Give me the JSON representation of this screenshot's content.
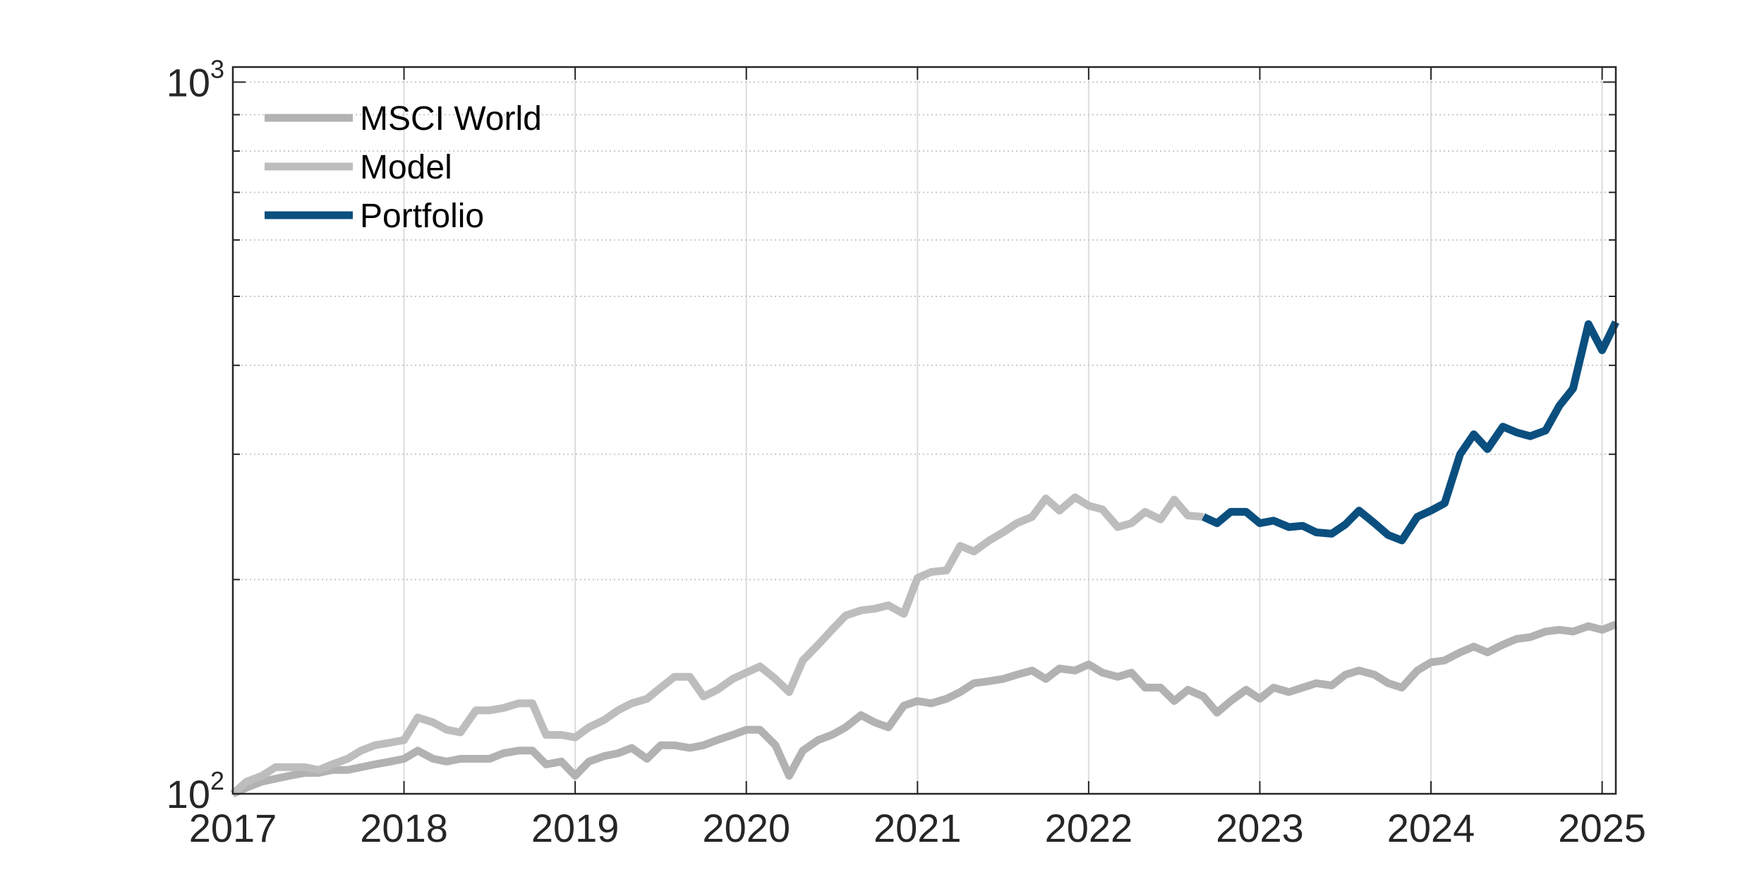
{
  "chart_data": {
    "type": "line",
    "title": "",
    "xlabel": "",
    "ylabel": "",
    "xlim": [
      2017.0,
      2025.08
    ],
    "ylim": [
      100,
      1050
    ],
    "yscale": "log",
    "grid": true,
    "legend_position": "top-left",
    "x_ticks": [
      "2017",
      "2018",
      "2019",
      "2020",
      "2021",
      "2022",
      "2023",
      "2024",
      "2025"
    ],
    "y_ticks": [
      {
        "base": "10",
        "exp": "2"
      },
      {
        "base": "10",
        "exp": "3"
      }
    ],
    "colors": {
      "msci_world": "#b2b2b2",
      "model": "#bdbdbd",
      "portfolio": "#0b4f7f"
    },
    "series": [
      {
        "name": "MSCI World",
        "key": "msci_world",
        "x": [
          2017.0,
          2017.08,
          2017.17,
          2017.25,
          2017.33,
          2017.42,
          2017.5,
          2017.58,
          2017.67,
          2017.75,
          2017.83,
          2017.92,
          2018.0,
          2018.08,
          2018.17,
          2018.25,
          2018.33,
          2018.42,
          2018.5,
          2018.58,
          2018.67,
          2018.75,
          2018.83,
          2018.92,
          2019.0,
          2019.08,
          2019.17,
          2019.25,
          2019.33,
          2019.42,
          2019.5,
          2019.58,
          2019.67,
          2019.75,
          2019.83,
          2019.92,
          2020.0,
          2020.08,
          2020.17,
          2020.25,
          2020.33,
          2020.42,
          2020.5,
          2020.58,
          2020.67,
          2020.75,
          2020.83,
          2020.92,
          2021.0,
          2021.08,
          2021.17,
          2021.25,
          2021.33,
          2021.42,
          2021.5,
          2021.58,
          2021.67,
          2021.75,
          2021.83,
          2021.92,
          2022.0,
          2022.08,
          2022.17,
          2022.25,
          2022.33,
          2022.42,
          2022.5,
          2022.58,
          2022.67,
          2022.75,
          2022.83,
          2022.92,
          2023.0,
          2023.08,
          2023.17,
          2023.25,
          2023.33,
          2023.42,
          2023.5,
          2023.58,
          2023.67,
          2023.75,
          2023.83,
          2023.92,
          2024.0,
          2024.08,
          2024.17,
          2024.25,
          2024.33,
          2024.42,
          2024.5,
          2024.58,
          2024.67,
          2024.75,
          2024.83,
          2024.92,
          2025.0,
          2025.08
        ],
        "values": [
          100,
          102,
          104,
          105,
          106,
          107,
          107,
          108,
          108,
          109,
          110,
          111,
          112,
          115,
          112,
          111,
          112,
          112,
          112,
          114,
          115,
          115,
          110,
          111,
          106,
          111,
          113,
          114,
          116,
          112,
          117,
          117,
          116,
          117,
          119,
          121,
          123,
          123,
          117,
          106,
          115,
          119,
          121,
          124,
          129,
          126,
          124,
          133,
          135,
          134,
          136,
          139,
          143,
          144,
          145,
          147,
          149,
          145,
          150,
          149,
          152,
          148,
          146,
          148,
          141,
          141,
          135,
          140,
          137,
          130,
          135,
          140,
          136,
          141,
          139,
          141,
          143,
          142,
          147,
          149,
          147,
          143,
          141,
          149,
          153,
          154,
          158,
          161,
          158,
          162,
          165,
          166,
          169,
          170,
          169,
          172,
          170,
          173
        ]
      },
      {
        "name": "Model",
        "key": "model",
        "x": [
          2017.0,
          2017.08,
          2017.17,
          2017.25,
          2017.33,
          2017.42,
          2017.5,
          2017.58,
          2017.67,
          2017.75,
          2017.83,
          2017.92,
          2018.0,
          2018.08,
          2018.17,
          2018.25,
          2018.33,
          2018.42,
          2018.5,
          2018.58,
          2018.67,
          2018.75,
          2018.83,
          2018.92,
          2019.0,
          2019.08,
          2019.17,
          2019.25,
          2019.33,
          2019.42,
          2019.5,
          2019.58,
          2019.67,
          2019.75,
          2019.83,
          2019.92,
          2020.0,
          2020.08,
          2020.17,
          2020.25,
          2020.33,
          2020.42,
          2020.5,
          2020.58,
          2020.67,
          2020.75,
          2020.83,
          2020.92,
          2021.0,
          2021.08,
          2021.17,
          2021.25,
          2021.33,
          2021.42,
          2021.5,
          2021.58,
          2021.67,
          2021.75,
          2021.83,
          2021.92,
          2022.0,
          2022.08,
          2022.17,
          2022.25,
          2022.33,
          2022.42,
          2022.5,
          2022.58,
          2022.67
        ],
        "values": [
          100,
          104,
          106,
          109,
          109,
          109,
          108,
          110,
          112,
          115,
          117,
          118,
          119,
          128,
          126,
          123,
          122,
          131,
          131,
          132,
          134,
          134,
          121,
          121,
          120,
          124,
          127,
          131,
          134,
          136,
          141,
          146,
          146,
          137,
          140,
          145,
          148,
          151,
          145,
          139,
          154,
          162,
          170,
          178,
          181,
          182,
          184,
          179,
          201,
          205,
          206,
          223,
          219,
          227,
          233,
          240,
          245,
          260,
          250,
          261,
          254,
          251,
          237,
          240,
          249,
          243,
          259,
          246,
          245
        ]
      },
      {
        "name": "Portfolio",
        "key": "portfolio",
        "x": [
          2022.67,
          2022.75,
          2022.83,
          2022.92,
          2023.0,
          2023.08,
          2023.17,
          2023.25,
          2023.33,
          2023.42,
          2023.5,
          2023.58,
          2023.67,
          2023.75,
          2023.83,
          2023.92,
          2024.0,
          2024.08,
          2024.17,
          2024.25,
          2024.33,
          2024.42,
          2024.5,
          2024.58,
          2024.67,
          2024.75,
          2024.83,
          2024.92,
          2025.0,
          2025.08
        ],
        "values": [
          245,
          240,
          249,
          249,
          240,
          242,
          237,
          238,
          233,
          232,
          239,
          250,
          240,
          231,
          227,
          245,
          250,
          256,
          300,
          320,
          305,
          328,
          322,
          318,
          324,
          351,
          371,
          457,
          420,
          460
        ]
      }
    ]
  }
}
